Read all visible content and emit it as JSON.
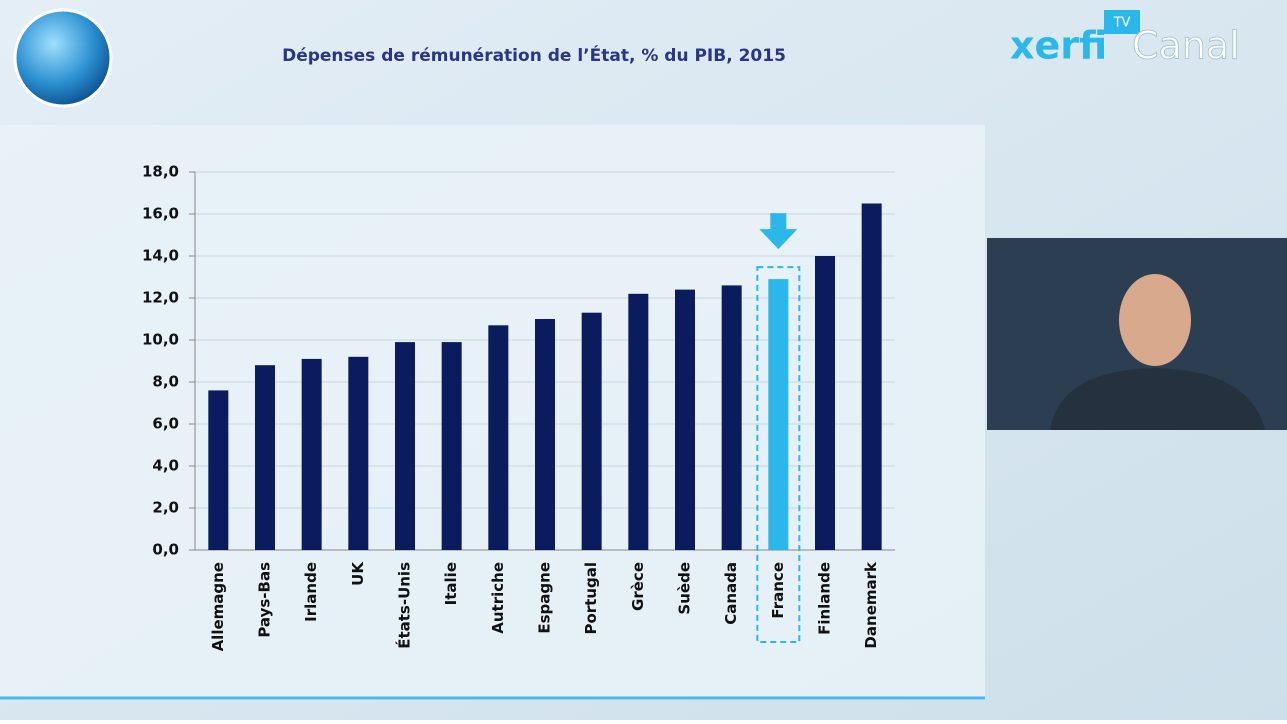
{
  "brand": {
    "name": "xerfi",
    "channel": "Canal",
    "badge": "TV"
  },
  "chart_data": {
    "type": "bar",
    "title": "Dépenses de rémunération de l’État, % du PIB, 2015",
    "categories": [
      "Allemagne",
      "Pays-Bas",
      "Irlande",
      "UK",
      "États-Unis",
      "Italie",
      "Autriche",
      "Espagne",
      "Portugal",
      "Grèce",
      "Suède",
      "Canada",
      "France",
      "Finlande",
      "Danemark"
    ],
    "values": [
      7.6,
      8.8,
      9.1,
      9.2,
      9.9,
      9.9,
      10.7,
      11.0,
      11.3,
      12.2,
      12.4,
      12.6,
      12.9,
      14.0,
      16.5
    ],
    "color": "#0b1c5e",
    "colors": [
      "#0b1c5e",
      "#0b1c5e",
      "#0b1c5e",
      "#0b1c5e",
      "#0b1c5e",
      "#0b1c5e",
      "#0b1c5e",
      "#0b1c5e",
      "#0b1c5e",
      "#0b1c5e",
      "#0b1c5e",
      "#0b1c5e",
      "#2bb7ea",
      "#0b1c5e",
      "#0b1c5e"
    ],
    "ylim": [
      0,
      18
    ],
    "yticks": [
      {
        "value": 0,
        "label": "0,0"
      },
      {
        "value": 2,
        "label": "2,0"
      },
      {
        "value": 4,
        "label": "4,0"
      },
      {
        "value": 6,
        "label": "6,0"
      },
      {
        "value": 8,
        "label": "8,0"
      },
      {
        "value": 10,
        "label": "10,0"
      },
      {
        "value": 12,
        "label": "12,0"
      },
      {
        "value": 14,
        "label": "14,0"
      },
      {
        "value": 16,
        "label": "16,0"
      },
      {
        "value": 18,
        "label": "18,0"
      }
    ],
    "grid": true
  }
}
